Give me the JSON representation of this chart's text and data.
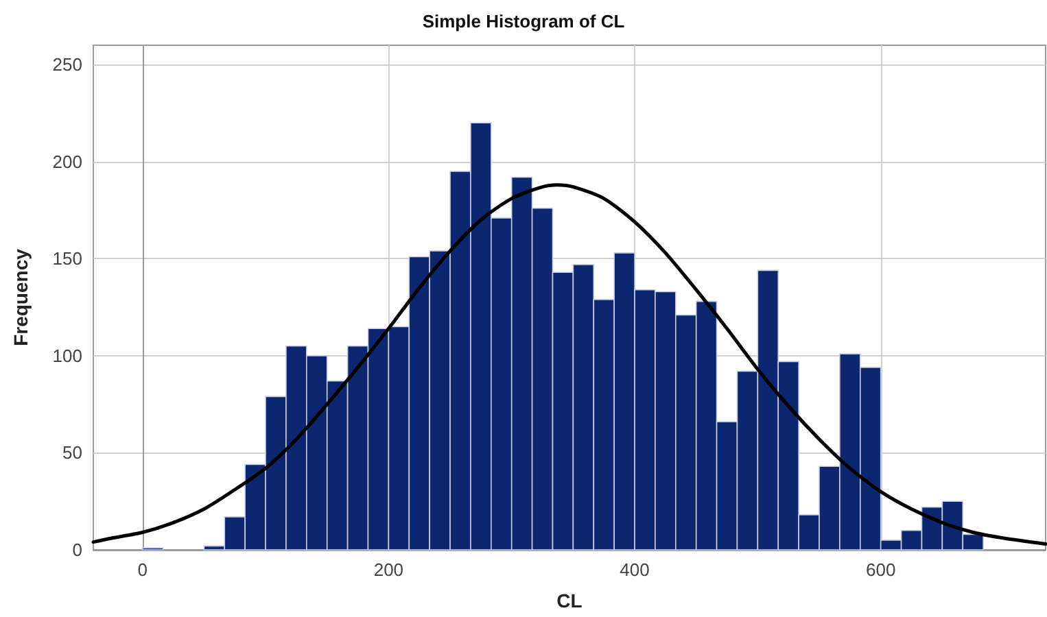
{
  "chart_data": {
    "type": "histogram",
    "title": "Simple Histogram of CL",
    "xlabel": "CL",
    "ylabel": "Frequency",
    "bins": [
      0,
      16.67,
      33.33,
      50,
      66.67,
      83.33,
      100,
      116.67,
      133.33,
      150,
      166.67,
      183.33,
      200,
      216.67,
      233.33,
      250,
      266.67,
      283.33,
      300,
      316.67,
      333.33,
      350,
      366.67,
      383.33,
      400,
      416.67,
      433.33,
      450,
      466.67,
      483.33,
      500,
      516.67,
      533.33,
      550,
      566.67,
      583.33,
      600,
      616.67,
      633.33,
      650,
      666.67,
      683.33
    ],
    "values": [
      1,
      0,
      0,
      2,
      17,
      44,
      79,
      105,
      100,
      87,
      105,
      114,
      115,
      151,
      154,
      195,
      220,
      171,
      192,
      176,
      143,
      147,
      129,
      153,
      134,
      133,
      121,
      128,
      66,
      92,
      144,
      97,
      18,
      43,
      101,
      94,
      5,
      10,
      22,
      25,
      8
    ],
    "color": "#0c2670",
    "series": [
      {
        "type": "line",
        "color": "#000000",
        "x": [
          -40,
          -25,
          0,
          25,
          50,
          75,
          100,
          125,
          150,
          175,
          200,
          225,
          250,
          275,
          300,
          325,
          337,
          350,
          375,
          400,
          425,
          450,
          475,
          500,
          525,
          550,
          575,
          600,
          625,
          650,
          675,
          700,
          734
        ],
        "values": [
          4,
          6,
          9,
          14,
          21,
          31,
          42,
          57,
          75,
          94,
          114,
          135,
          154,
          170,
          181,
          187,
          188,
          187,
          181,
          169,
          153,
          134,
          114,
          93,
          74,
          57,
          42,
          30,
          21,
          14,
          9,
          6,
          3
        ]
      }
    ],
    "marker": "none",
    "line_style": "solid",
    "xlim": [
      -40,
      734
    ],
    "xticks": [
      0,
      200,
      400,
      600
    ],
    "ylim": [
      0,
      260
    ],
    "yticks": [
      0,
      50,
      100,
      150,
      200,
      250
    ],
    "grid": true
  }
}
